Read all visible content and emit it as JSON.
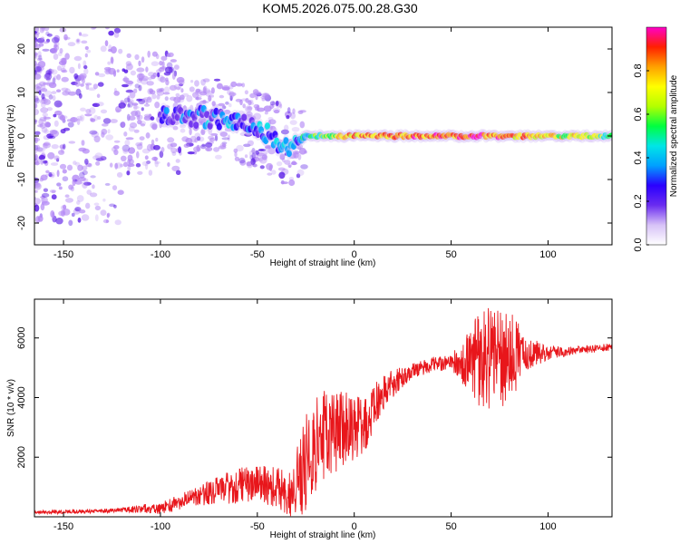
{
  "figure_title": "KOM5.2026.075.00.28.G30",
  "colors": {
    "snr_line": "#e8161b",
    "spectrogram_low": "#b388f5",
    "spectrogram_mid": "#4a06e4",
    "axis": "#000000"
  },
  "colormap_stops": [
    "#ffffff",
    "#d7c2f7",
    "#6a2cf0",
    "#2a00ff",
    "#00a0ff",
    "#00e6e6",
    "#00ff40",
    "#b4ff00",
    "#ffff00",
    "#ffa000",
    "#ff2000",
    "#ff00c8"
  ],
  "chart_data": [
    {
      "type": "heatmap",
      "title": "",
      "xlabel": "Height of straight line (km)",
      "ylabel": "Frequency (Hz)",
      "xlim": [
        -165,
        133
      ],
      "ylim": [
        -25,
        25
      ],
      "xticks": [
        -150,
        -100,
        -50,
        0,
        50,
        100
      ],
      "xtick_labels": [
        "-150",
        "-100",
        "-50",
        "0",
        "50",
        "100"
      ],
      "yticks": [
        -20,
        -10,
        0,
        10,
        20
      ],
      "ytick_labels": [
        "-20",
        "-10",
        "0",
        "10",
        "20"
      ],
      "colorbar": {
        "label": "Normalized spectral amplitude",
        "range": [
          0,
          1
        ],
        "ticks": [
          0.0,
          0.2,
          0.4,
          0.6,
          0.8
        ],
        "tick_labels": [
          "0.0",
          "0.2",
          "0.4",
          "0.6",
          "0.8"
        ]
      },
      "ridge": {
        "description_points": [
          {
            "height_km": -95,
            "freq_hz": 5,
            "amp": 0.2
          },
          {
            "height_km": -70,
            "freq_hz": 4,
            "amp": 0.3
          },
          {
            "height_km": -50,
            "freq_hz": 2,
            "amp": 0.3
          },
          {
            "height_km": -35,
            "freq_hz": -3,
            "amp": 0.35
          },
          {
            "height_km": -25,
            "freq_hz": 0,
            "amp": 0.4
          },
          {
            "height_km": 0,
            "freq_hz": 0,
            "amp": 0.8
          },
          {
            "height_km": 25,
            "freq_hz": 0,
            "amp": 0.85
          },
          {
            "height_km": 60,
            "freq_hz": 0,
            "amp": 0.9
          },
          {
            "height_km": 100,
            "freq_hz": 0,
            "amp": 0.7
          },
          {
            "height_km": 133,
            "freq_hz": 0,
            "amp": 0.55
          }
        ]
      }
    },
    {
      "type": "line",
      "title": "",
      "xlabel": "Height of straight line (km)",
      "ylabel": "SNR (10 * v/v)",
      "xlim": [
        -165,
        133
      ],
      "ylim": [
        0,
        7300
      ],
      "xticks": [
        -150,
        -100,
        -50,
        0,
        50,
        100
      ],
      "xtick_labels": [
        "-150",
        "-100",
        "-50",
        "0",
        "50",
        "100"
      ],
      "yticks": [
        2000,
        4000,
        6000
      ],
      "ytick_labels": [
        "2000",
        "4000",
        "6000"
      ],
      "series": [
        {
          "name": "SNR",
          "trend_x": [
            -165,
            -140,
            -120,
            -100,
            -85,
            -70,
            -55,
            -40,
            -32,
            -25,
            -20,
            -15,
            -10,
            -5,
            0,
            5,
            10,
            15,
            20,
            25,
            30,
            40,
            50,
            55,
            60,
            65,
            70,
            80,
            90,
            100,
            110,
            120,
            133
          ],
          "trend_y": [
            150,
            180,
            220,
            300,
            600,
            900,
            1100,
            1000,
            700,
            1900,
            2500,
            2700,
            2800,
            3000,
            3000,
            3000,
            3700,
            4200,
            4500,
            4700,
            4900,
            5100,
            5200,
            5200,
            5300,
            5200,
            5300,
            5400,
            5500,
            5500,
            5550,
            5620,
            5700
          ],
          "noise_x": [
            -165,
            -120,
            -85,
            -60,
            -40,
            -32,
            -25,
            -15,
            0,
            15,
            30,
            50,
            60,
            66,
            72,
            80,
            88,
            100,
            110,
            133
          ],
          "noise_amp": [
            60,
            80,
            300,
            600,
            700,
            800,
            1800,
            1600,
            1100,
            600,
            260,
            250,
            1100,
            2000,
            1600,
            1700,
            600,
            250,
            150,
            120
          ]
        }
      ]
    }
  ]
}
